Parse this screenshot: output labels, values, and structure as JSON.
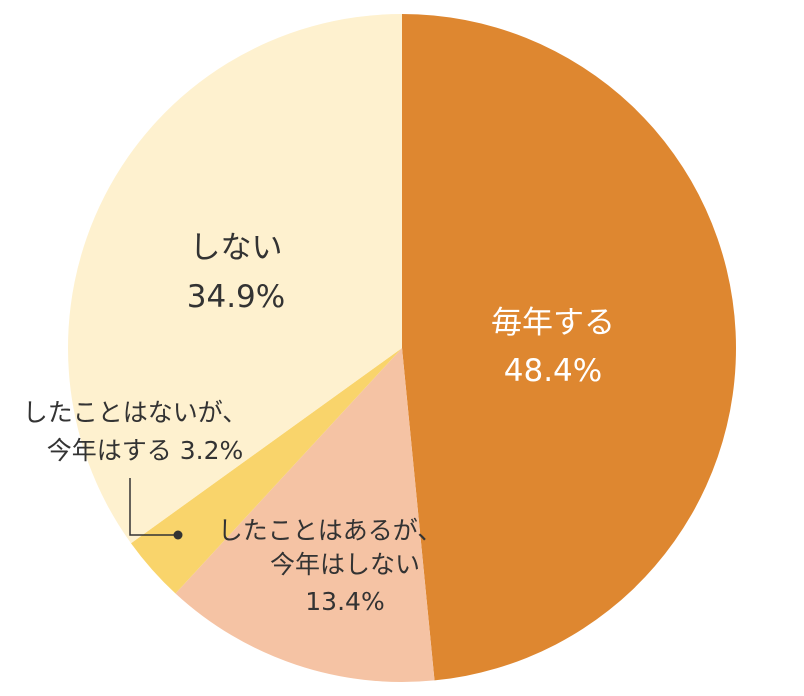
{
  "chart_data": {
    "type": "pie",
    "title": "",
    "slices": [
      {
        "label": "毎年する",
        "value": 48.4,
        "display": "48.4%",
        "color": "#DE8730",
        "text_color": "#ffffff"
      },
      {
        "label": "したことはあるが、今年はしない",
        "label_lines": [
          "したことはあるが、",
          "今年はしない"
        ],
        "value": 13.4,
        "display": "13.4%",
        "color": "#F5C3A4",
        "text_color": "#333333"
      },
      {
        "label": "したことはないが、今年はする",
        "label_lines": [
          "したことはないが、",
          "今年はする 3.2%"
        ],
        "value": 3.2,
        "display": "3.2%",
        "color": "#F9D46B",
        "text_color": "#333333"
      },
      {
        "label": "しない",
        "value": 34.9,
        "display": "34.9%",
        "color": "#FEF1CF",
        "text_color": "#333333"
      }
    ],
    "start": "top",
    "direction": "clockwise"
  }
}
